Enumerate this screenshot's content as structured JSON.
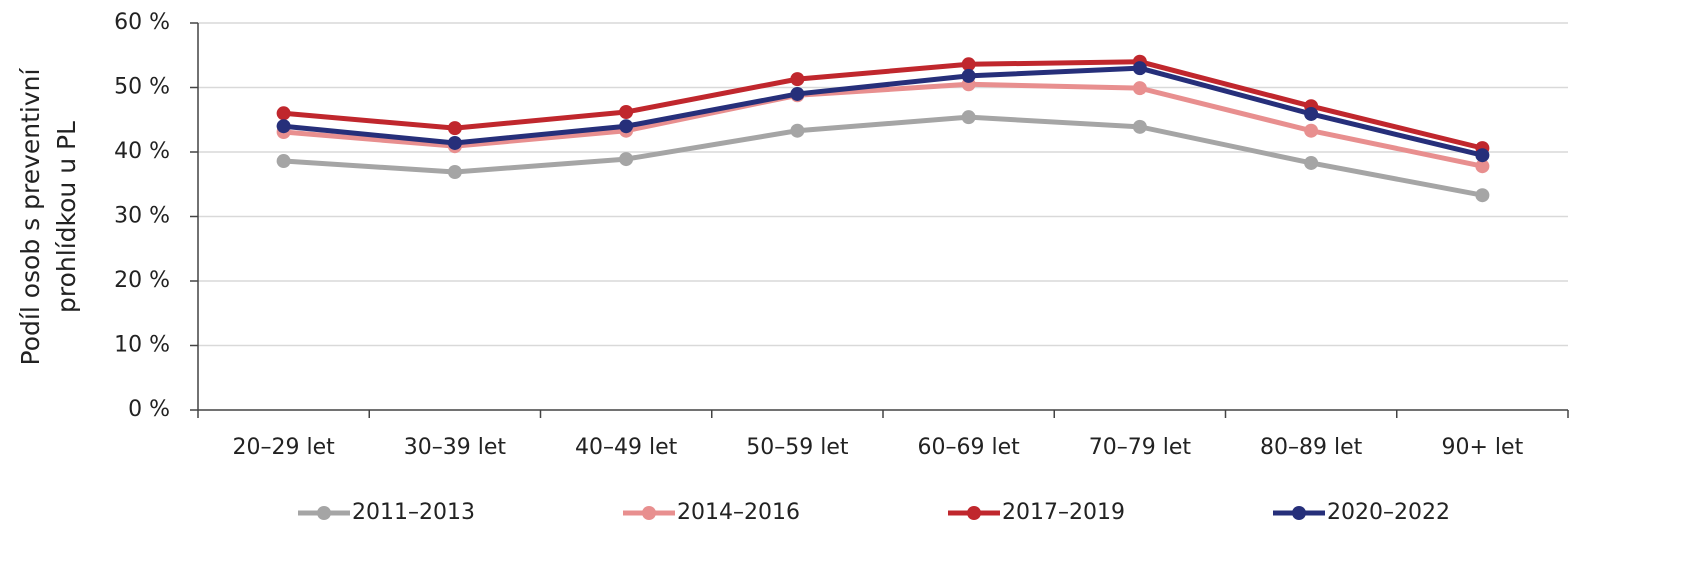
{
  "chart_data": {
    "type": "line",
    "y_label": [
      "Podíl osob s preventivní",
      "prohlídkou u PL"
    ],
    "categories": [
      "20–29 let",
      "30–39 let",
      "40–49 let",
      "50–59 let",
      "60–69 let",
      "70–79 let",
      "80–89 let",
      "90+ let"
    ],
    "series": [
      {
        "name": "2011–2013",
        "color": "#a5a5a5",
        "values": [
          38.6,
          36.9,
          38.9,
          43.3,
          45.4,
          43.9,
          38.3,
          33.3
        ]
      },
      {
        "name": "2014–2016",
        "color": "#e88f8f",
        "values": [
          43.1,
          40.9,
          43.3,
          48.8,
          50.5,
          49.9,
          43.3,
          37.8
        ]
      },
      {
        "name": "2017–2019",
        "color": "#c0272d",
        "values": [
          46.0,
          43.7,
          46.2,
          51.3,
          53.6,
          54.0,
          47.1,
          40.6
        ]
      },
      {
        "name": "2020–2022",
        "color": "#262f7a",
        "values": [
          44.0,
          41.4,
          44.0,
          49.0,
          51.8,
          53.0,
          45.9,
          39.5
        ]
      }
    ],
    "ylim": [
      0,
      60
    ],
    "yticks": [
      {
        "value": 0,
        "label": "0 %"
      },
      {
        "value": 10,
        "label": "10 %"
      },
      {
        "value": 20,
        "label": "20 %"
      },
      {
        "value": 30,
        "label": "30 %"
      },
      {
        "value": 40,
        "label": "40 %"
      },
      {
        "value": 50,
        "label": "50 %"
      },
      {
        "value": 60,
        "label": "60 %"
      }
    ],
    "grid": true,
    "legend": "bottom"
  }
}
